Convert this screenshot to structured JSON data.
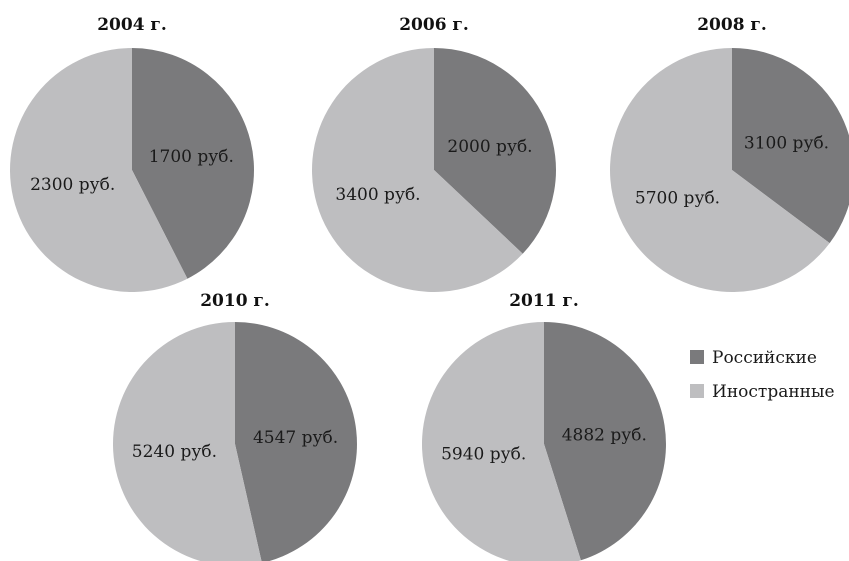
{
  "chart_data": [
    {
      "type": "pie",
      "title": "2004 г.",
      "slices": [
        {
          "series": "russian",
          "value": 1700,
          "label": "1700 руб."
        },
        {
          "series": "foreign",
          "value": 2300,
          "label": "2300 руб."
        }
      ]
    },
    {
      "type": "pie",
      "title": "2006 г.",
      "slices": [
        {
          "series": "russian",
          "value": 2000,
          "label": "2000 руб."
        },
        {
          "series": "foreign",
          "value": 3400,
          "label": "3400 руб."
        }
      ]
    },
    {
      "type": "pie",
      "title": "2008 г.",
      "slices": [
        {
          "series": "russian",
          "value": 3100,
          "label": "3100 руб."
        },
        {
          "series": "foreign",
          "value": 5700,
          "label": "5700 руб."
        }
      ]
    },
    {
      "type": "pie",
      "title": "2010 г.",
      "slices": [
        {
          "series": "russian",
          "value": 4547,
          "label": "4547 руб."
        },
        {
          "series": "foreign",
          "value": 5240,
          "label": "5240 руб."
        }
      ]
    },
    {
      "type": "pie",
      "title": "2011 г.",
      "slices": [
        {
          "series": "russian",
          "value": 4882,
          "label": "4882 руб."
        },
        {
          "series": "foreign",
          "value": 5940,
          "label": "5940 руб."
        }
      ]
    }
  ],
  "legend": {
    "position": "right",
    "items": [
      {
        "series": "russian",
        "label": "Российские",
        "color": "#7a7a7c"
      },
      {
        "series": "foreign",
        "label": "Иностранные",
        "color": "#bebec0"
      }
    ]
  },
  "colors": {
    "russian": "#7a7a7c",
    "foreign": "#bebec0",
    "background": "#ffffff"
  }
}
